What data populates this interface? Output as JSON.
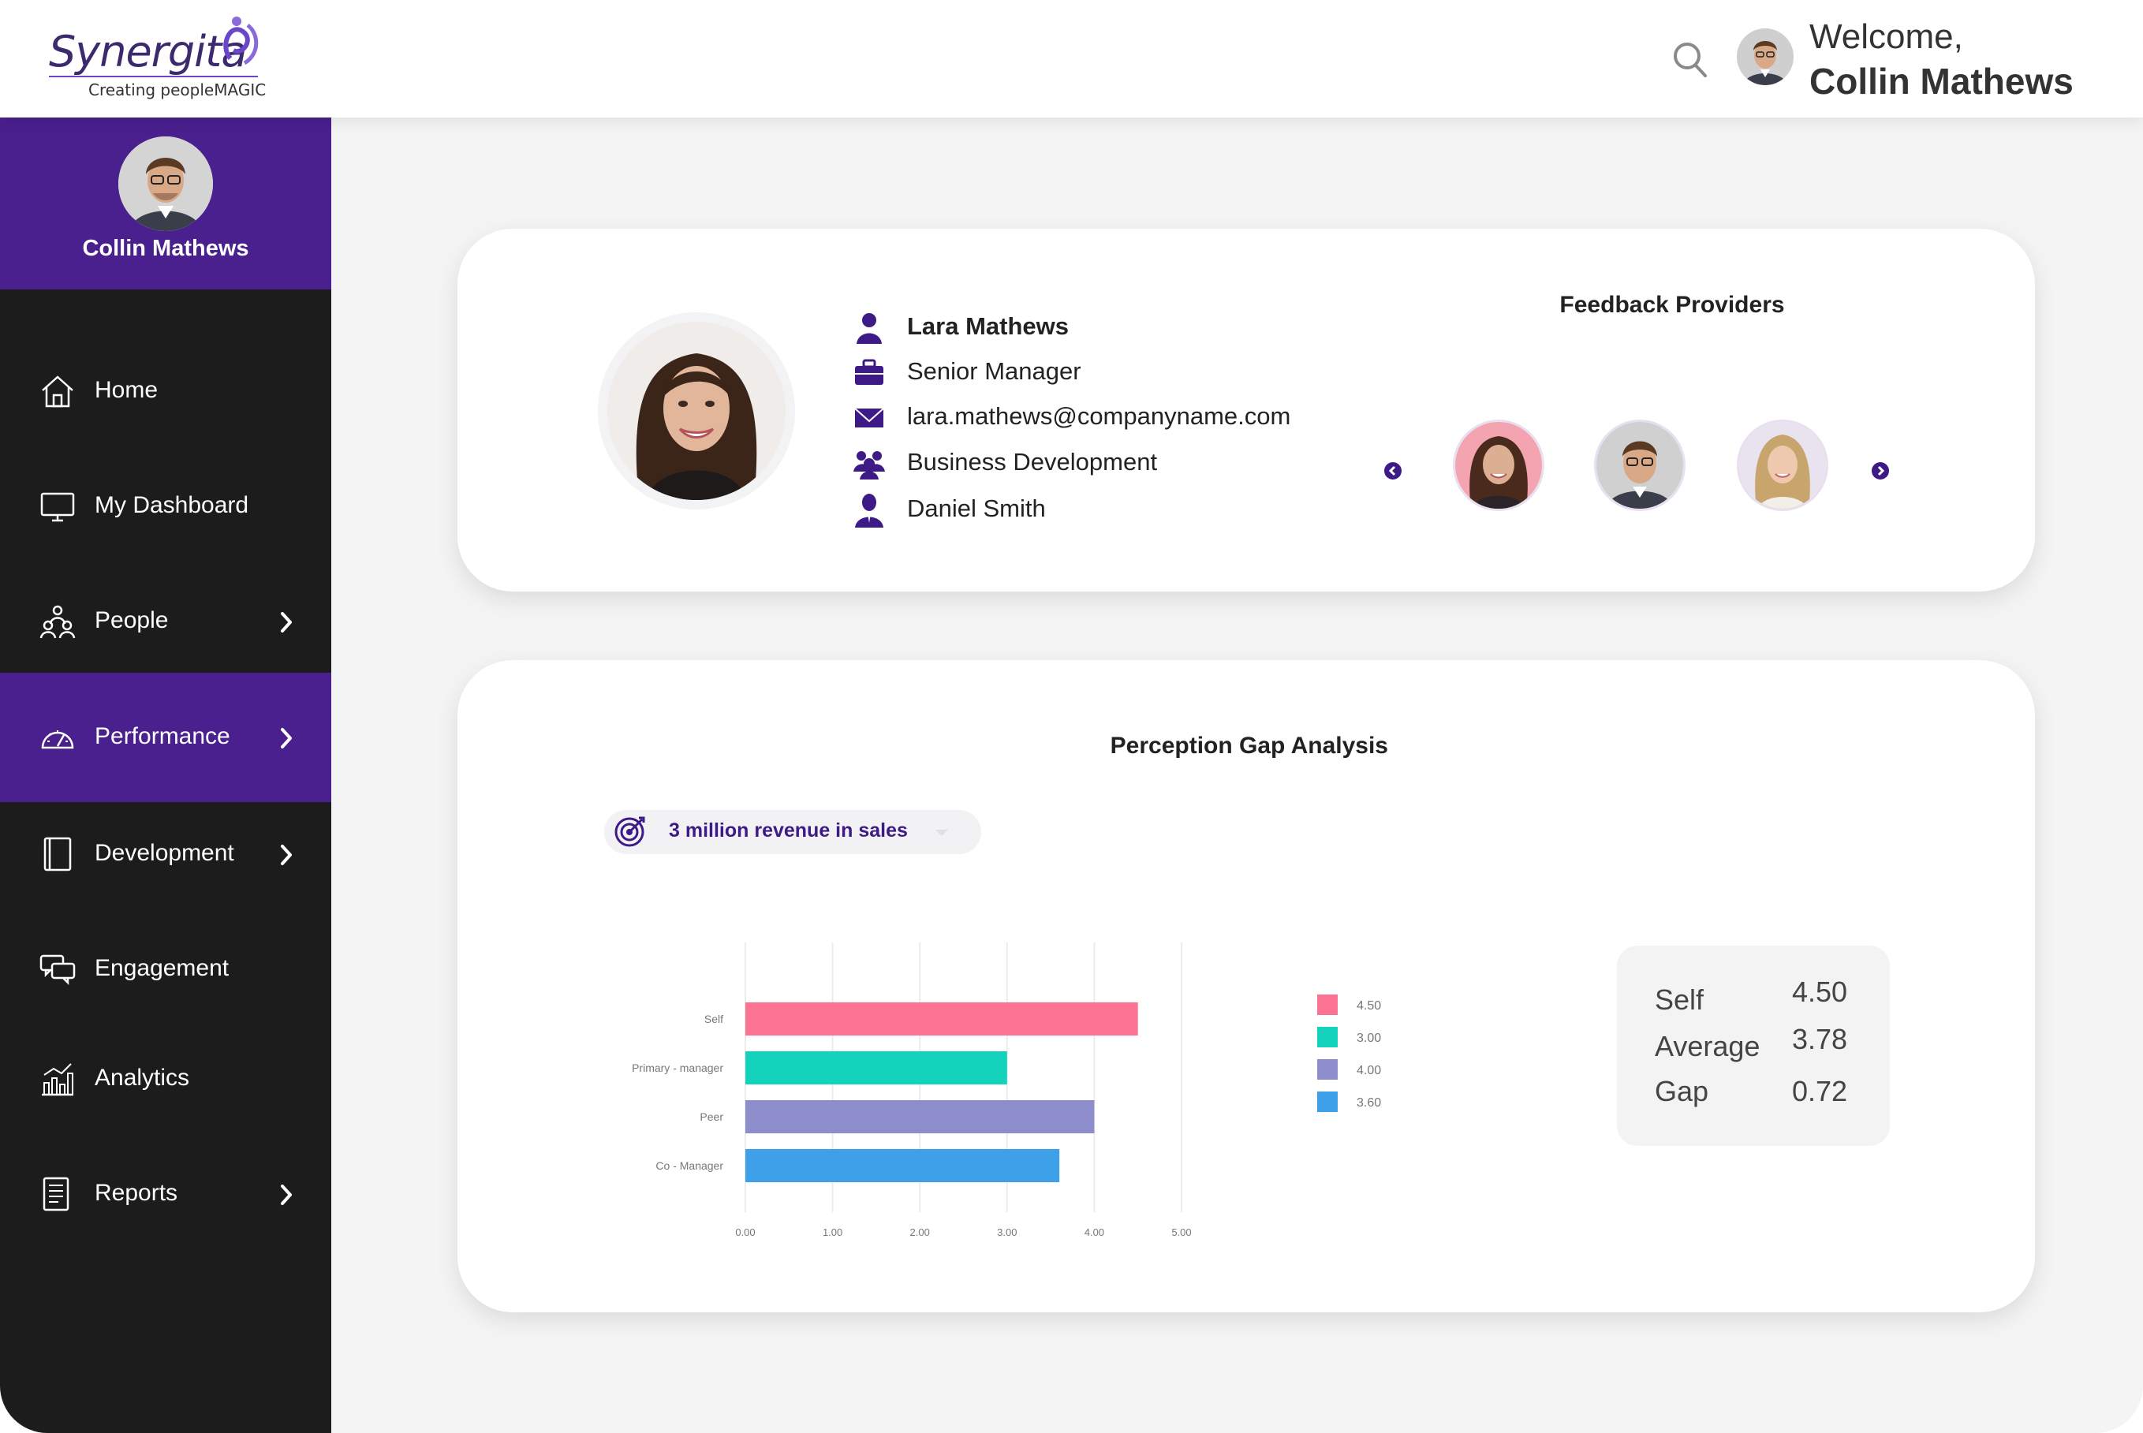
{
  "header": {
    "logo_text": "Synergita",
    "logo_tagline": "Creating peopleMAGIC",
    "welcome_line": "Welcome,",
    "user_name": "Collin Mathews"
  },
  "sidebar": {
    "profile_name": "Collin Mathews",
    "items": [
      {
        "label": "Home",
        "icon": "home-icon",
        "has_submenu": false,
        "active": false
      },
      {
        "label": "My Dashboard",
        "icon": "monitor-icon",
        "has_submenu": false,
        "active": false
      },
      {
        "label": "People",
        "icon": "people-icon",
        "has_submenu": true,
        "active": false
      },
      {
        "label": "Performance",
        "icon": "speedometer-icon",
        "has_submenu": true,
        "active": true
      },
      {
        "label": "Development",
        "icon": "book-icon",
        "has_submenu": true,
        "active": false
      },
      {
        "label": "Engagement",
        "icon": "chat-bubbles-icon",
        "has_submenu": false,
        "active": false
      },
      {
        "label": "Analytics",
        "icon": "bar-chart-icon",
        "has_submenu": false,
        "active": false
      },
      {
        "label": "Reports",
        "icon": "report-icon",
        "has_submenu": true,
        "active": false
      }
    ]
  },
  "employee": {
    "name": "Lara Mathews",
    "designation": "Senior Manager",
    "email": "lara.mathews@companyname.com",
    "department": "Business Development",
    "manager": "Daniel Smith"
  },
  "feedback": {
    "title": "Feedback Providers"
  },
  "perception": {
    "title": "Perception Gap Analysis",
    "goal": "3 million revenue in sales",
    "summary": [
      {
        "label": "Self",
        "value": "4.50"
      },
      {
        "label": "Average",
        "value": "3.78"
      },
      {
        "label": "Gap",
        "value": "0.72"
      }
    ]
  },
  "chart_data": {
    "type": "bar",
    "orientation": "horizontal",
    "categories": [
      "Self",
      "Primary - manager",
      "Peer",
      "Co - Manager"
    ],
    "values": [
      4.5,
      3.0,
      4.0,
      3.6
    ],
    "colors": [
      "#fb7391",
      "#14d3bd",
      "#8e8dcc",
      "#3ea0e8"
    ],
    "legend": [
      "4.50",
      "3.00",
      "4.00",
      "3.60"
    ],
    "xticks": [
      "0.00",
      "1.00",
      "2.00",
      "3.00",
      "4.00",
      "5.00"
    ],
    "xlim": [
      0,
      5
    ],
    "grid": true,
    "legend_position": "right"
  },
  "colors": {
    "brand_purple": "#4a1f8e",
    "sidebar_dark": "#1c1c1c",
    "accent_text": "#3d1a86"
  }
}
